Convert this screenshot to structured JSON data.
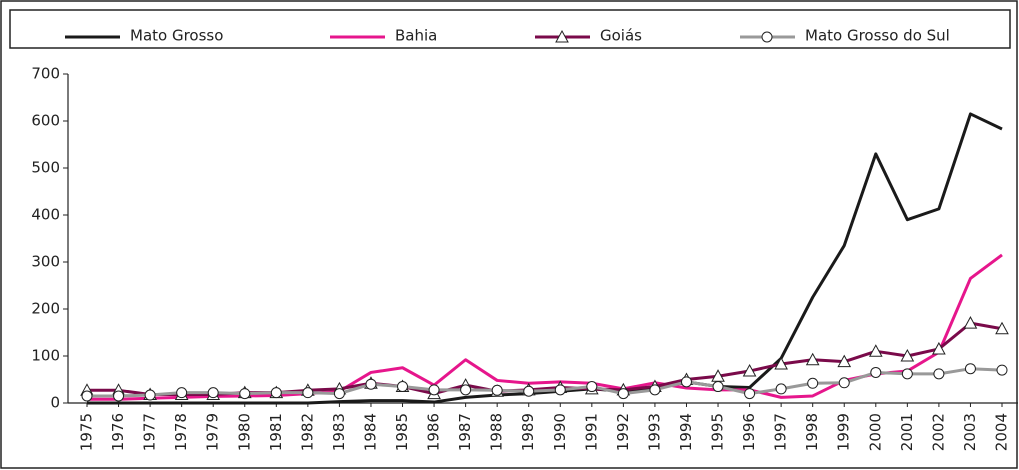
{
  "chart_data": {
    "type": "line",
    "categories": [
      "1975",
      "1976",
      "1977",
      "1978",
      "1979",
      "1980",
      "1981",
      "1982",
      "1983",
      "1984",
      "1985",
      "1986",
      "1987",
      "1988",
      "1989",
      "1990",
      "1991",
      "1992",
      "1993",
      "1994",
      "1995",
      "1996",
      "1997",
      "1998",
      "1999",
      "2000",
      "2001",
      "2002",
      "2003",
      "2004"
    ],
    "series": [
      {
        "name": "Mato Grosso",
        "color": "#1a1a1a",
        "marker": "none",
        "values": [
          0,
          0,
          0,
          0,
          0,
          0,
          0,
          0,
          3,
          5,
          5,
          2,
          12,
          17,
          20,
          25,
          30,
          25,
          30,
          45,
          35,
          33,
          95,
          225,
          335,
          530,
          390,
          413,
          615,
          583
        ]
      },
      {
        "name": "Bahia",
        "color": "#e6168c",
        "marker": "none",
        "values": [
          8,
          8,
          10,
          12,
          14,
          15,
          16,
          20,
          25,
          65,
          75,
          38,
          92,
          48,
          42,
          45,
          42,
          30,
          43,
          32,
          28,
          28,
          12,
          15,
          48,
          62,
          68,
          108,
          265,
          315
        ]
      },
      {
        "name": "Goiás",
        "color": "#7a0a4a",
        "marker": "triangle",
        "values": [
          27,
          27,
          18,
          18,
          18,
          22,
          22,
          27,
          30,
          42,
          35,
          20,
          38,
          25,
          28,
          33,
          30,
          28,
          35,
          50,
          57,
          68,
          83,
          92,
          88,
          110,
          100,
          115,
          170,
          158
        ]
      },
      {
        "name": "Mato Grosso do Sul",
        "color": "#999999",
        "marker": "circle",
        "values": [
          15,
          15,
          17,
          22,
          22,
          20,
          22,
          22,
          20,
          40,
          35,
          28,
          28,
          27,
          25,
          28,
          35,
          20,
          28,
          45,
          35,
          20,
          30,
          42,
          43,
          65,
          62,
          62,
          73,
          70
        ]
      }
    ],
    "ylim": [
      0,
      700
    ],
    "yticks": [
      0,
      100,
      200,
      300,
      400,
      500,
      600,
      700
    ],
    "grid": false
  }
}
